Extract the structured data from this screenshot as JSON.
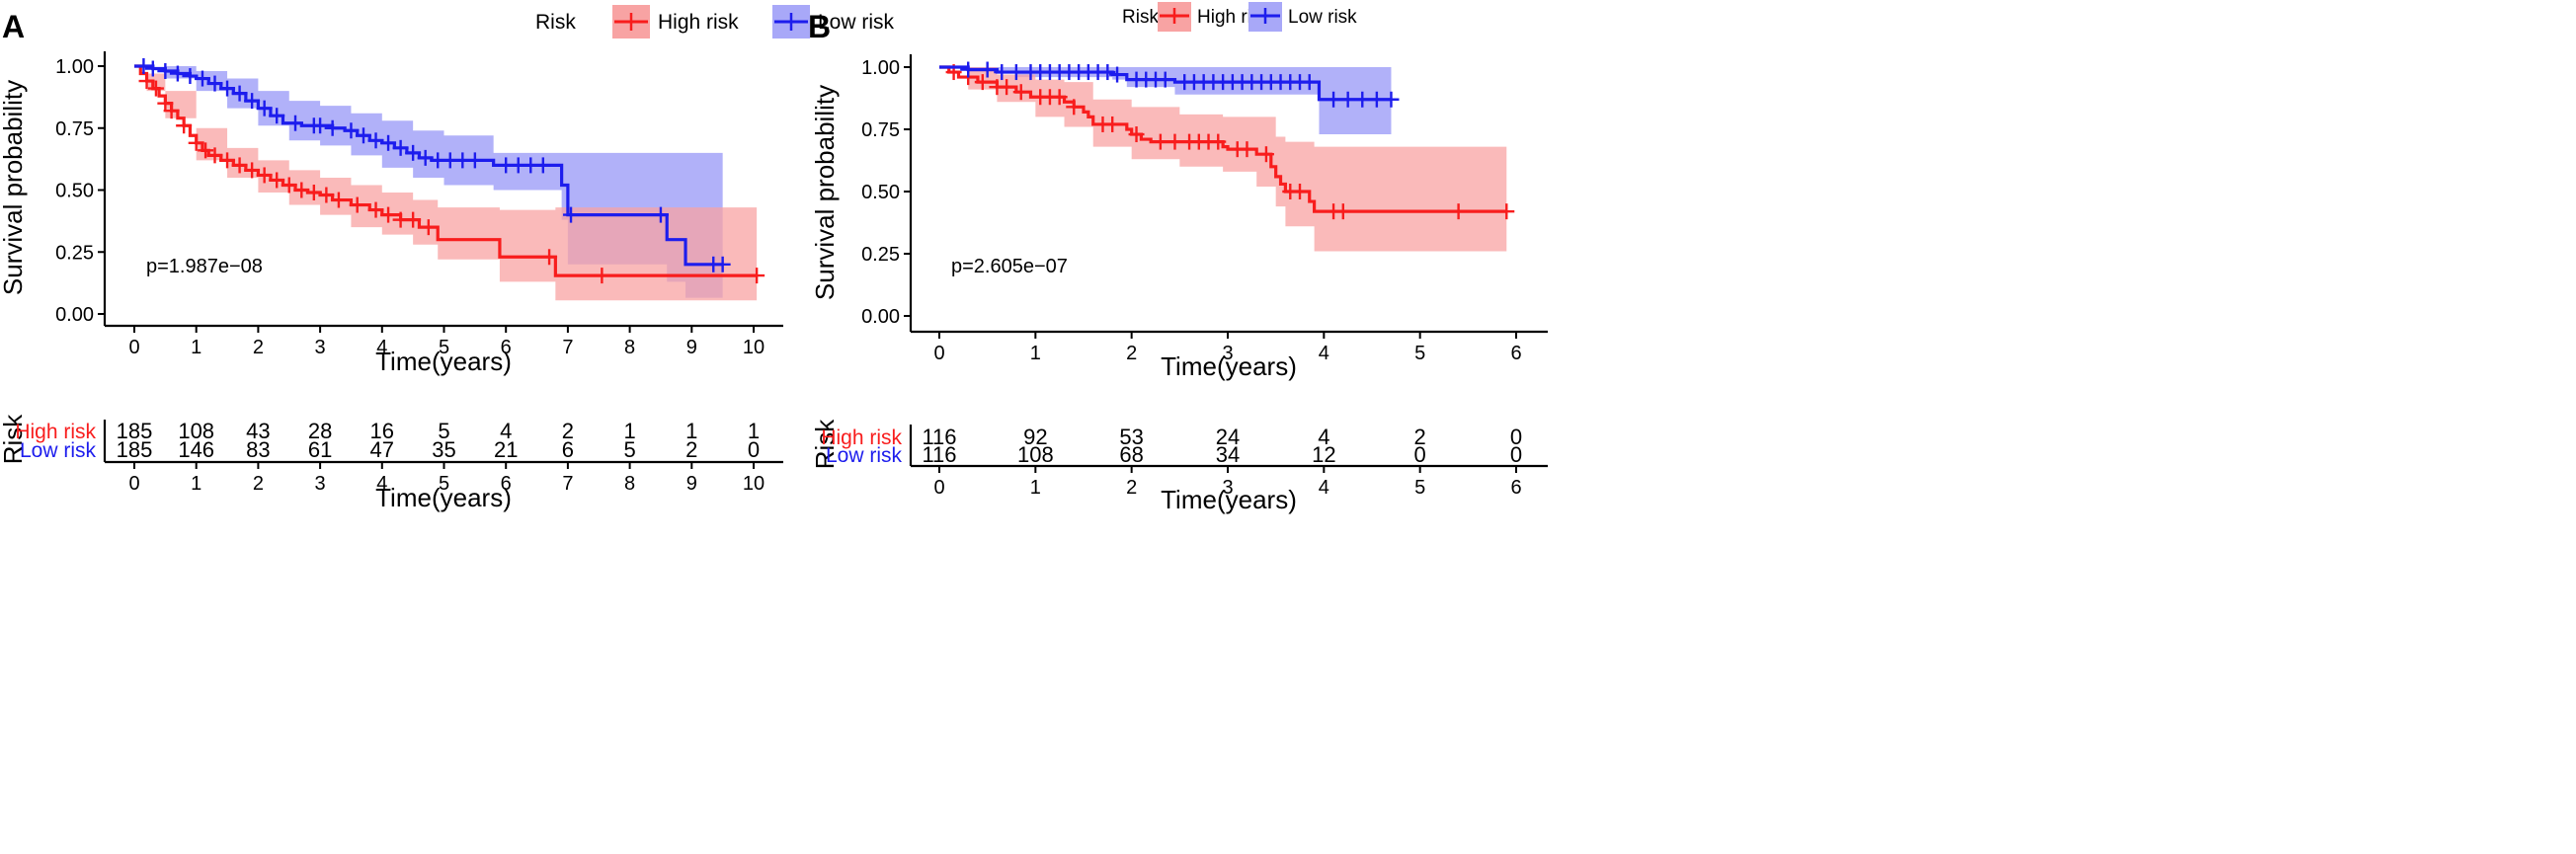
{
  "colors": {
    "high": "#f81d1d",
    "low": "#1d1ded",
    "high_band": "#f8a3a3",
    "low_band": "#a8a8f8",
    "overlap": "#9a86d8"
  },
  "chart_data": [
    {
      "type": "line",
      "panel_label": "A",
      "legend": {
        "title": "Risk",
        "placement": "top",
        "entries": [
          "High risk",
          "Low risk"
        ]
      },
      "xlabel": "Time(years)",
      "ylabel": "Survival probability",
      "xlim": [
        0,
        10
      ],
      "ylim": [
        0,
        1
      ],
      "x_ticks": [
        "0",
        "1",
        "2",
        "3",
        "4",
        "5",
        "6",
        "7",
        "8",
        "9",
        "10"
      ],
      "y_ticks": [
        "0.00",
        "0.25",
        "0.50",
        "0.75",
        "1.00"
      ],
      "pvalue": "p=1.987e−08",
      "series": [
        {
          "name": "High risk",
          "steps": [
            [
              0,
              1
            ],
            [
              0.1,
              0.97
            ],
            [
              0.2,
              0.94
            ],
            [
              0.3,
              0.91
            ],
            [
              0.4,
              0.88
            ],
            [
              0.5,
              0.85
            ],
            [
              0.6,
              0.82
            ],
            [
              0.7,
              0.79
            ],
            [
              0.8,
              0.76
            ],
            [
              0.9,
              0.72
            ],
            [
              1.0,
              0.69
            ],
            [
              1.1,
              0.66
            ],
            [
              1.2,
              0.64
            ],
            [
              1.4,
              0.62
            ],
            [
              1.6,
              0.6
            ],
            [
              1.8,
              0.58
            ],
            [
              2.0,
              0.56
            ],
            [
              2.2,
              0.54
            ],
            [
              2.4,
              0.52
            ],
            [
              2.6,
              0.5
            ],
            [
              2.8,
              0.49
            ],
            [
              3.0,
              0.48
            ],
            [
              3.2,
              0.46
            ],
            [
              3.5,
              0.44
            ],
            [
              3.8,
              0.42
            ],
            [
              4.0,
              0.4
            ],
            [
              4.3,
              0.38
            ],
            [
              4.6,
              0.35
            ],
            [
              4.9,
              0.3
            ],
            [
              5.9,
              0.23
            ],
            [
              6.8,
              0.155
            ],
            [
              10.05,
              0.155
            ]
          ],
          "lower": [
            [
              0,
              1
            ],
            [
              0.2,
              0.9
            ],
            [
              0.5,
              0.79
            ],
            [
              1.0,
              0.62
            ],
            [
              1.5,
              0.55
            ],
            [
              2.0,
              0.49
            ],
            [
              2.5,
              0.44
            ],
            [
              3.0,
              0.4
            ],
            [
              3.5,
              0.35
            ],
            [
              4.0,
              0.32
            ],
            [
              4.5,
              0.28
            ],
            [
              4.9,
              0.22
            ],
            [
              5.9,
              0.13
            ],
            [
              6.8,
              0.055
            ],
            [
              10.05,
              0.055
            ]
          ],
          "upper": [
            [
              0,
              1
            ],
            [
              0.2,
              0.97
            ],
            [
              0.5,
              0.9
            ],
            [
              1.0,
              0.75
            ],
            [
              1.5,
              0.67
            ],
            [
              2.0,
              0.62
            ],
            [
              2.5,
              0.58
            ],
            [
              3.0,
              0.55
            ],
            [
              3.5,
              0.52
            ],
            [
              4.0,
              0.49
            ],
            [
              4.5,
              0.46
            ],
            [
              4.9,
              0.43
            ],
            [
              5.9,
              0.42
            ],
            [
              6.8,
              0.43
            ],
            [
              10.05,
              0.43
            ]
          ],
          "censor_x": [
            0.2,
            0.35,
            0.5,
            0.6,
            0.8,
            1.0,
            1.15,
            1.3,
            1.5,
            1.7,
            1.9,
            2.1,
            2.3,
            2.5,
            2.7,
            2.9,
            3.1,
            3.3,
            3.6,
            3.9,
            4.1,
            4.3,
            4.5,
            4.75,
            6.7,
            7.55,
            10.05
          ]
        },
        {
          "name": "Low risk",
          "steps": [
            [
              0,
              1
            ],
            [
              0.3,
              0.99
            ],
            [
              0.5,
              0.98
            ],
            [
              0.7,
              0.97
            ],
            [
              0.9,
              0.96
            ],
            [
              1.0,
              0.95
            ],
            [
              1.2,
              0.93
            ],
            [
              1.4,
              0.91
            ],
            [
              1.6,
              0.89
            ],
            [
              1.8,
              0.86
            ],
            [
              2.0,
              0.83
            ],
            [
              2.2,
              0.8
            ],
            [
              2.4,
              0.77
            ],
            [
              2.7,
              0.76
            ],
            [
              3.2,
              0.75
            ],
            [
              3.4,
              0.74
            ],
            [
              3.6,
              0.72
            ],
            [
              3.8,
              0.7
            ],
            [
              4.0,
              0.69
            ],
            [
              4.2,
              0.67
            ],
            [
              4.4,
              0.65
            ],
            [
              4.6,
              0.63
            ],
            [
              4.8,
              0.62
            ],
            [
              5.8,
              0.6
            ],
            [
              6.9,
              0.52
            ],
            [
              7.0,
              0.4
            ],
            [
              8.6,
              0.3
            ],
            [
              8.9,
              0.2
            ],
            [
              9.5,
              0.2
            ]
          ],
          "lower": [
            [
              0,
              1
            ],
            [
              0.5,
              0.95
            ],
            [
              1.0,
              0.9
            ],
            [
              1.5,
              0.83
            ],
            [
              2.0,
              0.76
            ],
            [
              2.5,
              0.7
            ],
            [
              3.0,
              0.68
            ],
            [
              3.5,
              0.64
            ],
            [
              4.0,
              0.59
            ],
            [
              4.5,
              0.55
            ],
            [
              5.0,
              0.52
            ],
            [
              5.8,
              0.5
            ],
            [
              6.9,
              0.38
            ],
            [
              7.0,
              0.2
            ],
            [
              8.6,
              0.13
            ],
            [
              8.9,
              0.065
            ],
            [
              9.5,
              0.065
            ]
          ],
          "upper": [
            [
              0,
              1
            ],
            [
              0.5,
              1.0
            ],
            [
              1.0,
              0.98
            ],
            [
              1.5,
              0.95
            ],
            [
              2.0,
              0.9
            ],
            [
              2.5,
              0.86
            ],
            [
              3.0,
              0.84
            ],
            [
              3.5,
              0.81
            ],
            [
              4.0,
              0.78
            ],
            [
              4.5,
              0.74
            ],
            [
              5.0,
              0.72
            ],
            [
              5.8,
              0.65
            ],
            [
              7.0,
              0.65
            ],
            [
              9.5,
              0.65
            ]
          ],
          "censor_x": [
            0.15,
            0.3,
            0.5,
            0.7,
            0.9,
            1.1,
            1.3,
            1.5,
            1.7,
            1.9,
            2.1,
            2.3,
            2.6,
            2.9,
            3.0,
            3.2,
            3.5,
            3.7,
            3.9,
            4.1,
            4.3,
            4.5,
            4.7,
            4.9,
            5.1,
            5.3,
            5.5,
            6.0,
            6.2,
            6.4,
            6.6,
            7.05,
            8.5,
            9.35,
            9.5
          ]
        }
      ],
      "risk_table": {
        "title": "Risk",
        "xlabel": "Time(years)",
        "rows": [
          {
            "label": "High risk",
            "counts": [
              "185",
              "108",
              "43",
              "28",
              "16",
              "5",
              "4",
              "2",
              "1",
              "1",
              "1"
            ]
          },
          {
            "label": "Low risk",
            "counts": [
              "185",
              "146",
              "83",
              "61",
              "47",
              "35",
              "21",
              "6",
              "5",
              "2",
              "0"
            ]
          }
        ]
      }
    },
    {
      "type": "line",
      "panel_label": "B",
      "legend": {
        "title": "Risk",
        "placement": "top",
        "entries": [
          "High risk",
          "Low risk"
        ]
      },
      "xlabel": "Time(years)",
      "ylabel": "Survival probability",
      "xlim": [
        0,
        6
      ],
      "ylim": [
        0,
        1
      ],
      "x_ticks": [
        "0",
        "1",
        "2",
        "3",
        "4",
        "5",
        "6"
      ],
      "y_ticks": [
        "0.00",
        "0.25",
        "0.50",
        "0.75",
        "1.00"
      ],
      "pvalue": "p=2.605e−07",
      "series": [
        {
          "name": "High risk",
          "steps": [
            [
              0,
              1
            ],
            [
              0.1,
              0.98
            ],
            [
              0.2,
              0.96
            ],
            [
              0.4,
              0.94
            ],
            [
              0.6,
              0.92
            ],
            [
              0.8,
              0.9
            ],
            [
              0.95,
              0.88
            ],
            [
              1.3,
              0.86
            ],
            [
              1.4,
              0.84
            ],
            [
              1.5,
              0.82
            ],
            [
              1.55,
              0.8
            ],
            [
              1.6,
              0.77
            ],
            [
              1.95,
              0.75
            ],
            [
              2.0,
              0.73
            ],
            [
              2.1,
              0.71
            ],
            [
              2.2,
              0.7
            ],
            [
              2.95,
              0.68
            ],
            [
              3.0,
              0.67
            ],
            [
              3.3,
              0.65
            ],
            [
              3.45,
              0.6
            ],
            [
              3.5,
              0.56
            ],
            [
              3.55,
              0.53
            ],
            [
              3.6,
              0.5
            ],
            [
              3.85,
              0.46
            ],
            [
              3.9,
              0.42
            ],
            [
              5.9,
              0.42
            ]
          ],
          "lower": [
            [
              0,
              1
            ],
            [
              0.3,
              0.91
            ],
            [
              0.6,
              0.86
            ],
            [
              1.0,
              0.8
            ],
            [
              1.3,
              0.76
            ],
            [
              1.6,
              0.68
            ],
            [
              2.0,
              0.63
            ],
            [
              2.5,
              0.6
            ],
            [
              2.95,
              0.58
            ],
            [
              3.3,
              0.52
            ],
            [
              3.5,
              0.44
            ],
            [
              3.6,
              0.36
            ],
            [
              3.9,
              0.26
            ],
            [
              5.9,
              0.26
            ]
          ],
          "upper": [
            [
              0,
              1
            ],
            [
              0.3,
              1.0
            ],
            [
              0.6,
              0.97
            ],
            [
              1.0,
              0.95
            ],
            [
              1.3,
              0.94
            ],
            [
              1.6,
              0.87
            ],
            [
              2.0,
              0.84
            ],
            [
              2.5,
              0.81
            ],
            [
              2.95,
              0.8
            ],
            [
              3.3,
              0.8
            ],
            [
              3.5,
              0.72
            ],
            [
              3.6,
              0.7
            ],
            [
              3.9,
              0.68
            ],
            [
              5.9,
              0.68
            ]
          ],
          "censor_x": [
            0.15,
            0.3,
            0.45,
            0.6,
            0.7,
            0.85,
            1.05,
            1.15,
            1.25,
            1.4,
            1.7,
            1.8,
            2.05,
            2.3,
            2.45,
            2.6,
            2.7,
            2.8,
            2.9,
            3.1,
            3.2,
            3.4,
            3.65,
            3.75,
            4.1,
            4.2,
            5.4,
            5.9
          ]
        },
        {
          "name": "Low risk",
          "steps": [
            [
              0,
              1
            ],
            [
              0.3,
              0.99
            ],
            [
              0.6,
              0.98
            ],
            [
              1.8,
              0.97
            ],
            [
              1.95,
              0.95
            ],
            [
              2.45,
              0.94
            ],
            [
              3.95,
              0.87
            ],
            [
              4.7,
              0.87
            ]
          ],
          "lower": [
            [
              0,
              1
            ],
            [
              0.3,
              0.98
            ],
            [
              0.8,
              0.96
            ],
            [
              1.8,
              0.95
            ],
            [
              1.95,
              0.92
            ],
            [
              2.45,
              0.89
            ],
            [
              3.95,
              0.73
            ],
            [
              4.7,
              0.73
            ]
          ],
          "upper": [
            [
              0,
              1
            ],
            [
              3.95,
              1.0
            ],
            [
              4.7,
              1.0
            ]
          ],
          "censor_x": [
            0.3,
            0.5,
            0.65,
            0.8,
            0.95,
            1.05,
            1.15,
            1.25,
            1.35,
            1.45,
            1.55,
            1.65,
            1.75,
            1.85,
            2.05,
            2.15,
            2.25,
            2.35,
            2.55,
            2.65,
            2.75,
            2.85,
            2.95,
            3.05,
            3.15,
            3.25,
            3.35,
            3.45,
            3.55,
            3.65,
            3.75,
            3.85,
            4.1,
            4.25,
            4.4,
            4.55,
            4.7
          ]
        }
      ],
      "risk_table": {
        "title": "Risk",
        "xlabel": "Time(years)",
        "rows": [
          {
            "label": "High risk",
            "counts": [
              "116",
              "92",
              "53",
              "24",
              "4",
              "2",
              "0"
            ]
          },
          {
            "label": "Low risk",
            "counts": [
              "116",
              "108",
              "68",
              "34",
              "12",
              "0",
              "0"
            ]
          }
        ]
      }
    }
  ]
}
